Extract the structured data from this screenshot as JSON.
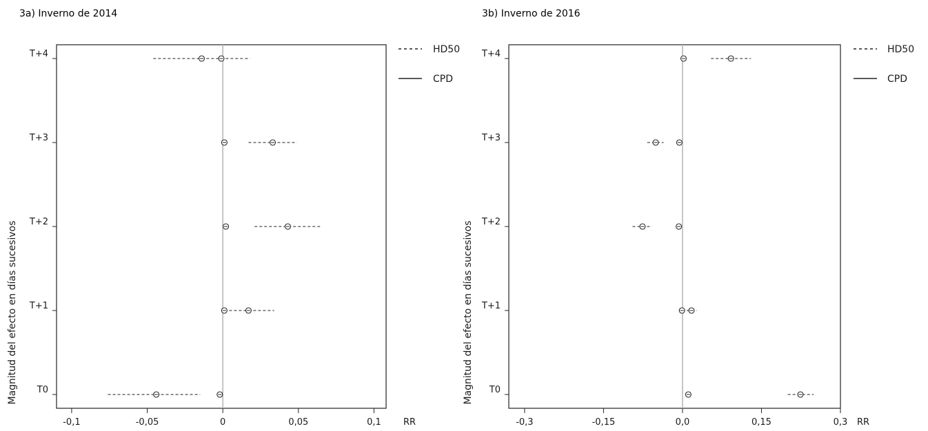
{
  "chart_data": [
    {
      "type": "scatter",
      "subtype": "forest-plot",
      "title": "3a) Inverno de 2014",
      "ylabel": "Magnitud del efecto en días sucesivos",
      "xlabel": "RR",
      "xlim": [
        -0.11,
        0.108
      ],
      "xticks": [
        -0.1,
        -0.05,
        0,
        0.05,
        0.1
      ],
      "xtick_labels": [
        "-0,1",
        "-0,05",
        "0",
        "0,05",
        "0,1"
      ],
      "categories": [
        "T+4",
        "T+3",
        "T+2",
        "T+1",
        "T0"
      ],
      "reference_line": 0,
      "legend": {
        "position": "right",
        "entries": [
          "HD50",
          "CPD"
        ]
      },
      "series": [
        {
          "name": "HD50",
          "line_style": "dashed",
          "values": [
            -0.014,
            0.033,
            0.043,
            0.017,
            -0.044
          ],
          "ci_low": [
            -0.046,
            0.017,
            0.021,
            0.001,
            -0.076
          ],
          "ci_high": [
            0.018,
            0.049,
            0.065,
            0.034,
            -0.015
          ]
        },
        {
          "name": "CPD",
          "line_style": "solid",
          "values": [
            -0.001,
            0.001,
            0.002,
            0.001,
            -0.002
          ],
          "ci_low": [
            -0.002,
            0.0,
            0.001,
            0.0,
            -0.003
          ],
          "ci_high": [
            0.0,
            0.002,
            0.003,
            0.002,
            -0.001
          ]
        }
      ]
    },
    {
      "type": "scatter",
      "subtype": "forest-plot",
      "title": "3b) Inverno de 2016",
      "ylabel": "Magnitud del efecto en días sucesivos",
      "xlabel": "RR",
      "xlim": [
        -0.33,
        0.3
      ],
      "xticks": [
        -0.3,
        -0.15,
        0.0,
        0.15,
        0.3
      ],
      "xtick_labels": [
        "-0,3",
        "-0,15",
        "0,0",
        "0,15",
        "0,3"
      ],
      "categories": [
        "T+4",
        "T+3",
        "T+2",
        "T+1",
        "T0"
      ],
      "reference_line": 0,
      "legend": {
        "position": "right",
        "entries": [
          "HD50",
          "CPD"
        ]
      },
      "series": [
        {
          "name": "HD50",
          "line_style": "dashed",
          "values": [
            0.092,
            -0.051,
            -0.076,
            0.017,
            0.224
          ],
          "ci_low": [
            0.054,
            -0.067,
            -0.095,
            0.008,
            0.2
          ],
          "ci_high": [
            0.13,
            -0.036,
            -0.058,
            0.027,
            0.249
          ]
        },
        {
          "name": "CPD",
          "line_style": "solid",
          "values": [
            0.002,
            -0.006,
            -0.007,
            -0.001,
            0.011
          ],
          "ci_low": [
            0.0,
            -0.008,
            -0.009,
            -0.003,
            0.009
          ],
          "ci_high": [
            0.004,
            -0.004,
            -0.005,
            0.001,
            0.013
          ]
        }
      ]
    }
  ]
}
